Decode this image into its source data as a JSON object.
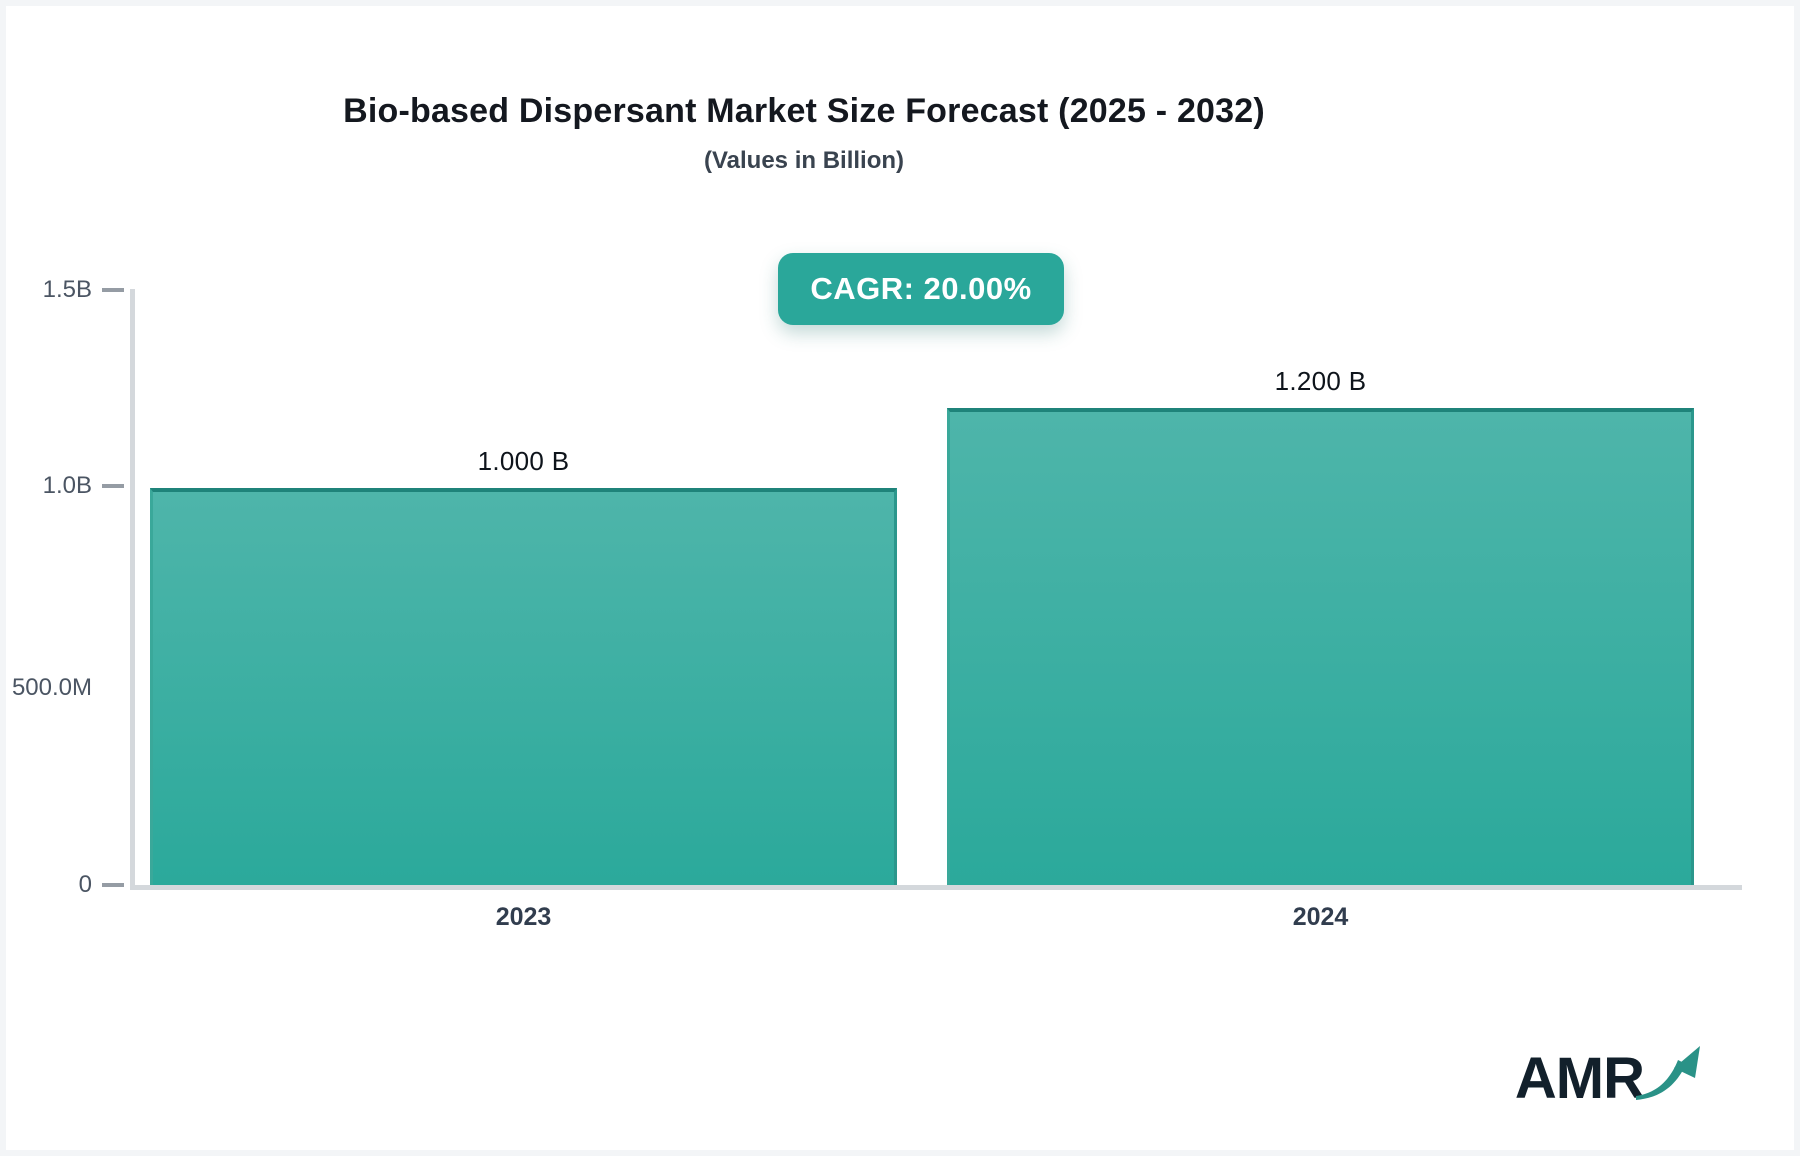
{
  "chart_data": {
    "type": "bar",
    "title": "Bio-based Dispersant Market Size Forecast (2025 - 2032)",
    "subtitle": "(Values in Billion)",
    "cagr_label": "CAGR: 20.00%",
    "categories": [
      "2023",
      "2024"
    ],
    "values": [
      1.0,
      1.2
    ],
    "value_labels": [
      "1.000 B",
      "1.200 B"
    ],
    "xlabel": "",
    "ylabel": "",
    "ylim": [
      0,
      1.5
    ],
    "ytick_labels": [
      "1.5B",
      "1.0B",
      "500.0M",
      "0"
    ],
    "ytick_values": [
      1.5,
      1.0,
      0.5,
      0
    ],
    "grid": false,
    "legend": false,
    "bar_gradient_top": "#4eb5aa",
    "bar_gradient_bottom": "#2ba99b",
    "accent_color": "#2aa79a"
  },
  "logo": {
    "text": "AMR",
    "arrow_color": "#2a9287"
  }
}
